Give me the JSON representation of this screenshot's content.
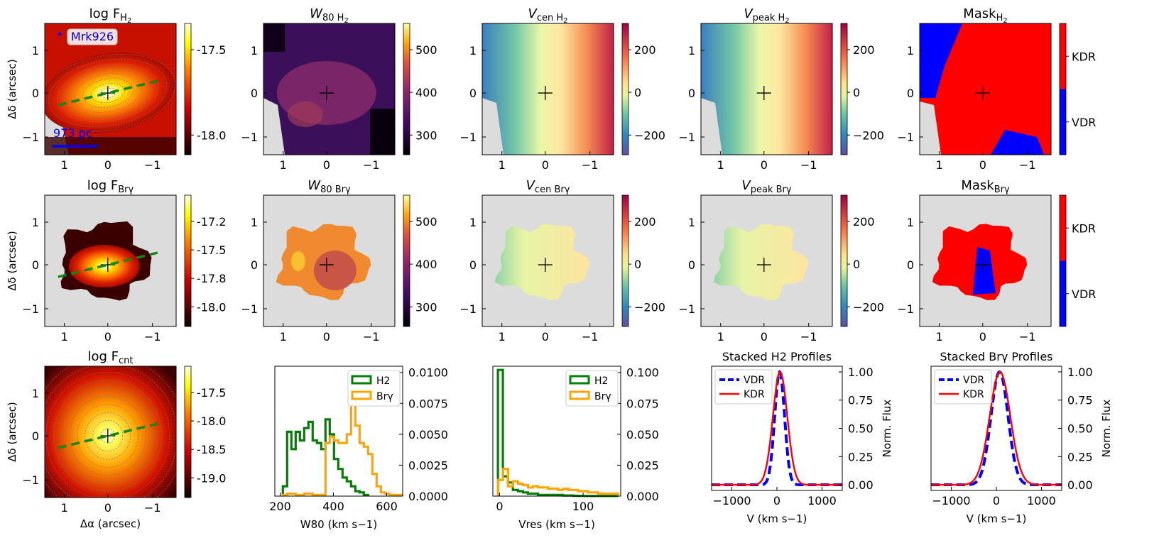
{
  "figure": {
    "galaxy_label": "Mrk926",
    "scale_bar_label": "973 pc",
    "xlabel_arcsec": "Δα (arcsec)",
    "ylabel_arcsec": "Δδ (arcsec)"
  },
  "map_ticks": [
    "1",
    "0",
    "−1"
  ],
  "maps": [
    {
      "key": "fh2",
      "title": "log F",
      "sub": "H",
      "sub2": "2",
      "cmap": "hot",
      "cbar_ticks": [
        "-17.5",
        "-18.0"
      ],
      "has_line": true
    },
    {
      "key": "w80h2",
      "title": "W",
      "sub": "80 H",
      "sub2": "2",
      "italic": true,
      "cmap": "inferno",
      "cbar_ticks": [
        "500",
        "400",
        "300"
      ]
    },
    {
      "key": "vcenh2",
      "title": "V",
      "sub": "cen H",
      "sub2": "2",
      "italic": true,
      "cmap": "spectral",
      "cbar_ticks": [
        "200",
        "0",
        "−200"
      ]
    },
    {
      "key": "vpeakh2",
      "title": "V",
      "sub": "peak H",
      "sub2": "2",
      "italic": true,
      "cmap": "spectral",
      "cbar_ticks": [
        "200",
        "0",
        "−200"
      ]
    },
    {
      "key": "maskh2",
      "title": "Mask",
      "sub": "H",
      "sub2": "2",
      "cmap": "mask",
      "cbar_ticks": [
        "KDR",
        "VDR"
      ]
    },
    {
      "key": "fbrg",
      "title": "log F",
      "sub": "Brγ",
      "cmap": "hot",
      "cbar_ticks": [
        "-17.2",
        "-17.5",
        "-17.8",
        "-18.0"
      ],
      "has_line": true
    },
    {
      "key": "w80brg",
      "title": "W",
      "sub": "80 Brγ",
      "italic": true,
      "cmap": "inferno",
      "cbar_ticks": [
        "500",
        "400",
        "300"
      ]
    },
    {
      "key": "vcenbrg",
      "title": "V",
      "sub": "cen Brγ",
      "italic": true,
      "cmap": "spectral",
      "cbar_ticks": [
        "200",
        "0",
        "−200"
      ]
    },
    {
      "key": "vpeakbrg",
      "title": "V",
      "sub": "peak Brγ",
      "italic": true,
      "cmap": "spectral",
      "cbar_ticks": [
        "200",
        "0",
        "−200"
      ]
    },
    {
      "key": "maskbrg",
      "title": "Mask",
      "sub": "Brγ",
      "cmap": "mask",
      "cbar_ticks": [
        "KDR",
        "VDR"
      ]
    },
    {
      "key": "fcnt",
      "title": "log F",
      "sub": "cnt",
      "cmap": "hot",
      "cbar_ticks": [
        "-17.5",
        "-18.0",
        "-18.5",
        "-19.0"
      ],
      "has_line": true
    }
  ],
  "chart_data": [
    {
      "type": "histogram",
      "title": "",
      "xlabel": "W80 (km s−1)",
      "xlim": [
        180,
        660
      ],
      "ylim": [
        0,
        0.0105
      ],
      "xticks": [
        "200",
        "400",
        "600"
      ],
      "yticks": [
        "0.0000",
        "0.0025",
        "0.0050",
        "0.0075",
        "0.0100"
      ],
      "legend": [
        "H2",
        "Brγ"
      ],
      "series": [
        {
          "name": "H2",
          "color": "#008000",
          "bin_start": 210,
          "bin_width": 16,
          "values": [
            0.0008,
            0.0052,
            0.0038,
            0.0052,
            0.0045,
            0.0055,
            0.006,
            0.0045,
            0.0043,
            0.0038,
            0.0062,
            0.005,
            0.003,
            0.0022,
            0.0015,
            0.0012,
            0.0008,
            0.0004,
            0.0003,
            0.0001
          ]
        },
        {
          "name": "Brγ",
          "color": "#FFA500",
          "bin_start": 210,
          "bin_width": 16,
          "values": [
            0.0001,
            0.0002,
            0.0002,
            0.0001,
            0.0001,
            0.0002,
            0.0002,
            0.0001,
            0.0001,
            0.0001,
            0.0043,
            0.0048,
            0.0045,
            0.0043,
            0.0043,
            0.005,
            0.0097,
            0.0057,
            0.0043,
            0.004,
            0.0034,
            0.0018,
            0.0008,
            0.0003,
            0.0002,
            0.0001,
            0.0001,
            0.0001
          ]
        }
      ]
    },
    {
      "type": "histogram",
      "title": "",
      "xlabel": "Vres (km s−1)",
      "xlim": [
        -8,
        145
      ],
      "ylim": [
        0,
        0.105
      ],
      "xticks": [
        "0",
        "100"
      ],
      "yticks": [
        "0.000",
        "0.025",
        "0.050",
        "0.075",
        "0.100"
      ],
      "legend": [
        "H2",
        "Brγ"
      ],
      "series": [
        {
          "name": "H2",
          "color": "#008000",
          "bin_start": -2,
          "bin_width": 6,
          "values": [
            0.102,
            0.016,
            0.011,
            0.005,
            0.004,
            0.003,
            0.002,
            0.002,
            0.001,
            0.001,
            0.001,
            0.001,
            0.001,
            0.0005,
            0.0005,
            0.0003,
            0.0002,
            0.0001,
            0.0001,
            0.0001,
            0.0001,
            0.0001,
            0.0001,
            0.0001
          ]
        },
        {
          "name": "Brγ",
          "color": "#FFA500",
          "bin_start": -2,
          "bin_width": 6,
          "values": [
            0.013,
            0.022,
            0.008,
            0.012,
            0.01,
            0.009,
            0.007,
            0.008,
            0.007,
            0.007,
            0.006,
            0.006,
            0.005,
            0.006,
            0.005,
            0.005,
            0.004,
            0.004,
            0.003,
            0.003,
            0.002,
            0.002,
            0.002,
            0.002
          ]
        }
      ]
    },
    {
      "type": "line",
      "title": "Stacked H2 Profiles",
      "xlabel": "V (km s−1)",
      "ylabel": "Norm. Flux",
      "xlim": [
        -1450,
        1450
      ],
      "ylim": [
        -0.05,
        1.05
      ],
      "xticks": [
        "−1000",
        "0",
        "1000"
      ],
      "yticks": [
        "0.00",
        "0.25",
        "0.50",
        "0.75",
        "1.00"
      ],
      "series": [
        {
          "name": "VDR",
          "color": "#0000FF",
          "dashed": true,
          "center": 60,
          "sigma": 110
        },
        {
          "name": "KDR",
          "color": "#FF0000",
          "dashed": false,
          "center": 70,
          "sigma": 160
        }
      ]
    },
    {
      "type": "line",
      "title": "Stacked Brγ Profiles",
      "xlabel": "V (km s−1)",
      "ylabel": "Norm. Flux",
      "xlim": [
        -1450,
        1450
      ],
      "ylim": [
        -0.05,
        1.05
      ],
      "xticks": [
        "−1000",
        "0",
        "1000"
      ],
      "yticks": [
        "0.00",
        "0.25",
        "0.50",
        "0.75",
        "1.00"
      ],
      "series": [
        {
          "name": "VDR",
          "color": "#0000FF",
          "dashed": true,
          "center": 70,
          "sigma": 190
        },
        {
          "name": "KDR",
          "color": "#FF0000",
          "dashed": false,
          "center": 80,
          "sigma": 230
        }
      ]
    }
  ]
}
